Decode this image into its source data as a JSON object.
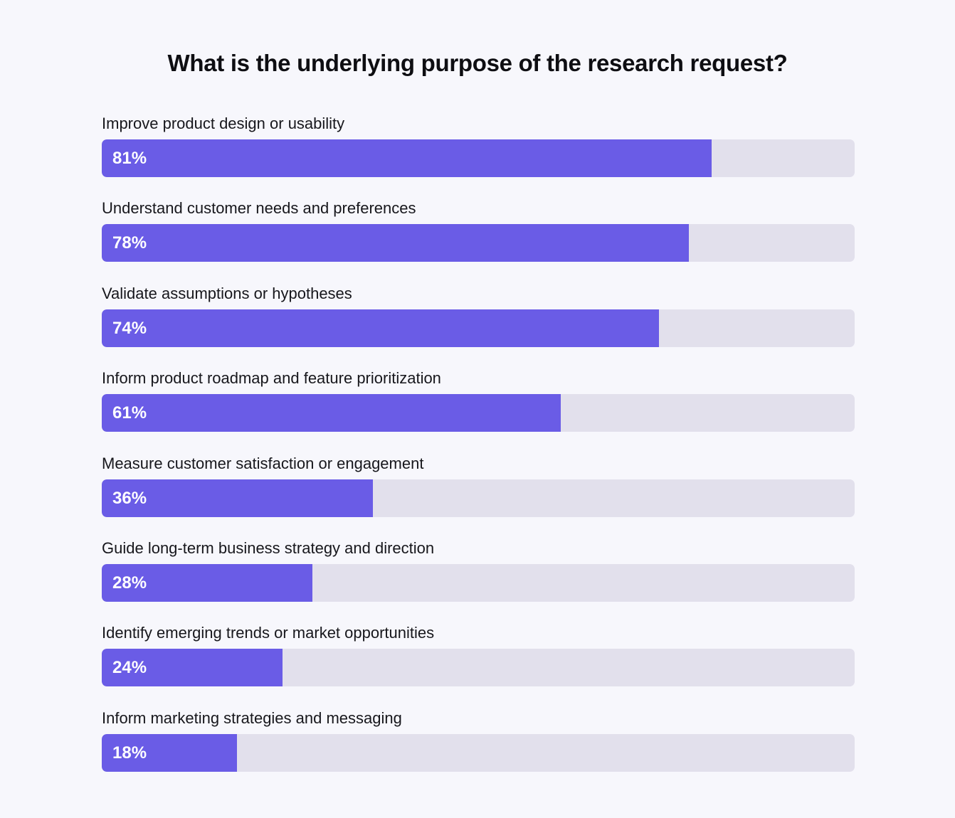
{
  "chart_data": {
    "type": "bar",
    "orientation": "horizontal",
    "title": "What is the underlying purpose of the research request?",
    "categories": [
      "Improve product design or usability",
      "Understand customer needs and preferences",
      "Validate assumptions or hypotheses",
      "Inform product roadmap and feature prioritization",
      "Measure customer satisfaction or engagement",
      "Guide long-term business strategy and direction",
      "Identify emerging trends or market opportunities",
      "Inform marketing strategies and messaging"
    ],
    "values": [
      81,
      78,
      74,
      61,
      36,
      28,
      24,
      18
    ],
    "value_labels": [
      "81%",
      "78%",
      "74%",
      "61%",
      "36%",
      "28%",
      "24%",
      "18%"
    ],
    "xlim": [
      0,
      100
    ],
    "grid": false,
    "colors": {
      "bar": "#6A5CE6",
      "track": "#E2E0EC",
      "background": "#F7F7FC",
      "value_text": "#FFFFFF"
    }
  }
}
